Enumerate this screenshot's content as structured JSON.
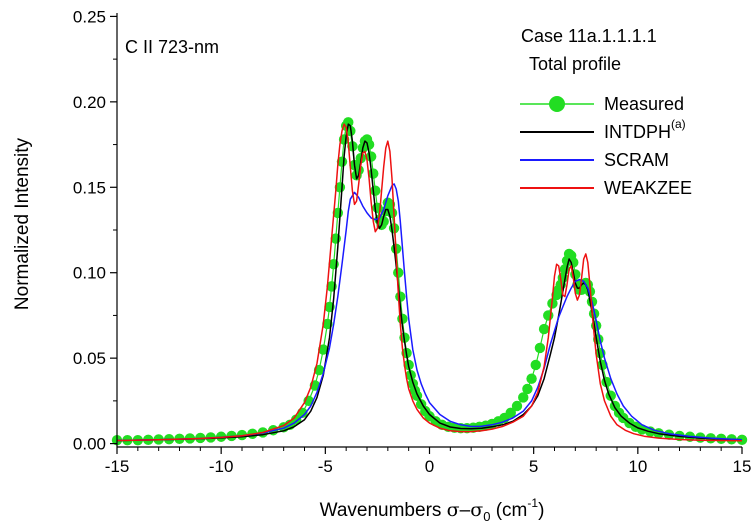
{
  "chart_data": {
    "type": "line",
    "title": "",
    "annotations": {
      "species": "C II 723-nm",
      "case_line1": "Case 11a.1.1.1.1",
      "case_line2": "Total profile"
    },
    "xlabel": {
      "prefix": "Wavenumbers ",
      "sigma": "σ",
      "minus": "–",
      "sigma0": "σ",
      "sigma0_sub": "0",
      "unit_open": " (cm",
      "unit_sup": "-1",
      "unit_close": ")"
    },
    "ylabel": "Normalized Intensity",
    "xlim": [
      -15,
      15
    ],
    "ylim": [
      -0.002,
      0.252
    ],
    "xticks": [
      -15,
      -10,
      -5,
      0,
      5,
      10,
      15
    ],
    "xtick_labels": [
      "-15",
      "-10",
      "-5",
      "0",
      "5",
      "10",
      "15"
    ],
    "yticks": [
      0.0,
      0.05,
      0.1,
      0.15,
      0.2,
      0.25
    ],
    "ytick_labels": [
      "0.00",
      "0.05",
      "0.10",
      "0.15",
      "0.20",
      "0.25"
    ],
    "grid": false,
    "legend_position": "top-right",
    "series": [
      {
        "name": "Measured",
        "style": "markers-line",
        "color": "#22dd22",
        "x": [
          -15,
          -14.5,
          -14,
          -13.5,
          -13,
          -12.5,
          -12,
          -11.5,
          -11,
          -10.5,
          -10,
          -9.5,
          -9,
          -8.5,
          -8,
          -7.5,
          -7,
          -6.7,
          -6.4,
          -6.1,
          -5.8,
          -5.5,
          -5.3,
          -5.1,
          -4.9,
          -4.8,
          -4.7,
          -4.6,
          -4.5,
          -4.4,
          -4.3,
          -4.2,
          -4.1,
          -4.0,
          -3.9,
          -3.8,
          -3.7,
          -3.6,
          -3.5,
          -3.4,
          -3.3,
          -3.2,
          -3.1,
          -3.0,
          -2.9,
          -2.8,
          -2.7,
          -2.6,
          -2.5,
          -2.4,
          -2.3,
          -2.2,
          -2.1,
          -2.0,
          -1.9,
          -1.8,
          -1.7,
          -1.6,
          -1.5,
          -1.4,
          -1.3,
          -1.2,
          -1.1,
          -1.0,
          -0.9,
          -0.8,
          -0.7,
          -0.6,
          -0.4,
          -0.2,
          0.0,
          0.3,
          0.6,
          0.9,
          1.2,
          1.5,
          1.8,
          2.1,
          2.4,
          2.7,
          3.0,
          3.3,
          3.6,
          3.9,
          4.2,
          4.5,
          4.7,
          4.9,
          5.1,
          5.3,
          5.5,
          5.7,
          5.9,
          6.1,
          6.2,
          6.3,
          6.4,
          6.5,
          6.6,
          6.7,
          6.8,
          6.9,
          7.0,
          7.1,
          7.2,
          7.3,
          7.4,
          7.5,
          7.6,
          7.7,
          7.8,
          7.9,
          8.0,
          8.1,
          8.2,
          8.3,
          8.5,
          8.7,
          8.9,
          9.1,
          9.3,
          9.6,
          9.9,
          10.2,
          10.6,
          11.0,
          11.5,
          12.0,
          12.5,
          13.0,
          13.5,
          14.0,
          14.5,
          15.0
        ],
        "y": [
          0.002,
          0.002,
          0.002,
          0.0022,
          0.0024,
          0.0026,
          0.0028,
          0.003,
          0.0033,
          0.0036,
          0.004,
          0.0045,
          0.005,
          0.0057,
          0.0065,
          0.0078,
          0.0095,
          0.011,
          0.014,
          0.018,
          0.025,
          0.034,
          0.043,
          0.055,
          0.07,
          0.08,
          0.092,
          0.105,
          0.12,
          0.135,
          0.15,
          0.165,
          0.178,
          0.186,
          0.188,
          0.183,
          0.174,
          0.163,
          0.157,
          0.16,
          0.167,
          0.173,
          0.177,
          0.178,
          0.175,
          0.168,
          0.158,
          0.148,
          0.138,
          0.131,
          0.128,
          0.13,
          0.136,
          0.141,
          0.14,
          0.135,
          0.126,
          0.114,
          0.1,
          0.086,
          0.073,
          0.062,
          0.053,
          0.046,
          0.04,
          0.035,
          0.031,
          0.028,
          0.023,
          0.019,
          0.016,
          0.013,
          0.011,
          0.0098,
          0.0093,
          0.009,
          0.009,
          0.0093,
          0.0098,
          0.0105,
          0.0115,
          0.013,
          0.015,
          0.018,
          0.022,
          0.027,
          0.032,
          0.038,
          0.046,
          0.056,
          0.067,
          0.075,
          0.082,
          0.087,
          0.09,
          0.093,
          0.097,
          0.102,
          0.107,
          0.111,
          0.11,
          0.106,
          0.099,
          0.093,
          0.09,
          0.09,
          0.092,
          0.094,
          0.093,
          0.089,
          0.083,
          0.076,
          0.069,
          0.061,
          0.053,
          0.046,
          0.036,
          0.028,
          0.022,
          0.018,
          0.015,
          0.012,
          0.0098,
          0.0083,
          0.007,
          0.006,
          0.0052,
          0.0045,
          0.004,
          0.0035,
          0.0031,
          0.0028,
          0.0025,
          0.0022
        ]
      },
      {
        "name": "INTDPH",
        "name_sup": "(a)",
        "style": "line",
        "color": "#000000",
        "x": [
          -15,
          -13,
          -11,
          -10,
          -9,
          -8,
          -7,
          -6.5,
          -6,
          -5.7,
          -5.4,
          -5.1,
          -4.8,
          -4.6,
          -4.4,
          -4.2,
          -4.1,
          -4.0,
          -3.9,
          -3.8,
          -3.7,
          -3.6,
          -3.5,
          -3.4,
          -3.3,
          -3.2,
          -3.1,
          -3.0,
          -2.9,
          -2.8,
          -2.7,
          -2.6,
          -2.5,
          -2.4,
          -2.3,
          -2.2,
          -2.1,
          -2.0,
          -1.9,
          -1.8,
          -1.7,
          -1.6,
          -1.5,
          -1.4,
          -1.3,
          -1.2,
          -1.1,
          -1.0,
          -0.8,
          -0.6,
          -0.3,
          0.0,
          0.5,
          1.0,
          1.5,
          2.0,
          2.5,
          3.0,
          3.5,
          4.0,
          4.5,
          4.9,
          5.2,
          5.5,
          5.8,
          6.0,
          6.2,
          6.3,
          6.4,
          6.5,
          6.6,
          6.7,
          6.8,
          6.9,
          7.0,
          7.1,
          7.2,
          7.3,
          7.4,
          7.5,
          7.6,
          7.7,
          7.8,
          7.9,
          8.0,
          8.2,
          8.4,
          8.6,
          8.9,
          9.2,
          9.6,
          10.0,
          10.5,
          11.0,
          12.0,
          13.0,
          14.0,
          15.0
        ],
        "y": [
          0.0018,
          0.0022,
          0.0028,
          0.0033,
          0.004,
          0.0052,
          0.0075,
          0.0098,
          0.014,
          0.019,
          0.027,
          0.04,
          0.062,
          0.085,
          0.115,
          0.15,
          0.168,
          0.18,
          0.187,
          0.186,
          0.177,
          0.163,
          0.155,
          0.157,
          0.165,
          0.173,
          0.177,
          0.176,
          0.17,
          0.16,
          0.148,
          0.137,
          0.129,
          0.126,
          0.128,
          0.133,
          0.137,
          0.137,
          0.133,
          0.125,
          0.115,
          0.104,
          0.092,
          0.08,
          0.069,
          0.06,
          0.052,
          0.045,
          0.036,
          0.029,
          0.022,
          0.017,
          0.012,
          0.0097,
          0.0088,
          0.0087,
          0.009,
          0.0098,
          0.011,
          0.013,
          0.017,
          0.022,
          0.028,
          0.038,
          0.052,
          0.062,
          0.075,
          0.082,
          0.089,
          0.096,
          0.103,
          0.108,
          0.106,
          0.1,
          0.094,
          0.091,
          0.091,
          0.093,
          0.094,
          0.093,
          0.09,
          0.084,
          0.077,
          0.07,
          0.062,
          0.048,
          0.037,
          0.029,
          0.021,
          0.016,
          0.012,
          0.0092,
          0.0072,
          0.0058,
          0.0042,
          0.0032,
          0.0026,
          0.0022
        ]
      },
      {
        "name": "SCRAM",
        "style": "line",
        "color": "#1a1aff",
        "x": [
          -15,
          -13,
          -11,
          -10,
          -9,
          -8,
          -7,
          -6.5,
          -6,
          -5.7,
          -5.4,
          -5.1,
          -4.8,
          -4.6,
          -4.4,
          -4.2,
          -4.0,
          -3.9,
          -3.8,
          -3.6,
          -3.4,
          -3.2,
          -3.0,
          -2.8,
          -2.6,
          -2.4,
          -2.2,
          -2.0,
          -1.8,
          -1.7,
          -1.6,
          -1.5,
          -1.4,
          -1.3,
          -1.2,
          -1.1,
          -1.0,
          -0.8,
          -0.6,
          -0.4,
          -0.2,
          0.0,
          0.5,
          1.0,
          1.5,
          2.0,
          2.5,
          3.0,
          3.5,
          4.0,
          4.5,
          4.9,
          5.2,
          5.5,
          5.8,
          6.0,
          6.2,
          6.4,
          6.6,
          6.8,
          7.0,
          7.2,
          7.4,
          7.6,
          7.8,
          8.0,
          8.2,
          8.4,
          8.7,
          9.0,
          9.3,
          9.7,
          10.2,
          10.8,
          11.5,
          12.5,
          13.5,
          14.5,
          15.0
        ],
        "y": [
          0.0018,
          0.0023,
          0.003,
          0.0037,
          0.0046,
          0.0062,
          0.009,
          0.012,
          0.017,
          0.022,
          0.03,
          0.041,
          0.056,
          0.07,
          0.086,
          0.105,
          0.125,
          0.136,
          0.143,
          0.147,
          0.144,
          0.139,
          0.135,
          0.132,
          0.131,
          0.132,
          0.137,
          0.145,
          0.151,
          0.152,
          0.149,
          0.142,
          0.13,
          0.115,
          0.1,
          0.086,
          0.073,
          0.055,
          0.043,
          0.035,
          0.029,
          0.024,
          0.017,
          0.013,
          0.011,
          0.01,
          0.0102,
          0.011,
          0.0125,
          0.015,
          0.019,
          0.025,
          0.033,
          0.044,
          0.058,
          0.066,
          0.074,
          0.08,
          0.086,
          0.091,
          0.095,
          0.096,
          0.095,
          0.091,
          0.083,
          0.072,
          0.06,
          0.05,
          0.038,
          0.029,
          0.022,
          0.016,
          0.011,
          0.0078,
          0.0058,
          0.0042,
          0.0032,
          0.0025,
          0.0022
        ]
      },
      {
        "name": "WEAKZEE",
        "style": "line",
        "color": "#ee1111",
        "x": [
          -15,
          -13,
          -11,
          -10,
          -9,
          -8,
          -7,
          -6.5,
          -6.0,
          -5.7,
          -5.4,
          -5.1,
          -4.9,
          -4.7,
          -4.5,
          -4.4,
          -4.3,
          -4.2,
          -4.1,
          -4.0,
          -3.9,
          -3.8,
          -3.7,
          -3.6,
          -3.5,
          -3.4,
          -3.3,
          -3.2,
          -3.1,
          -3.0,
          -2.9,
          -2.8,
          -2.7,
          -2.6,
          -2.5,
          -2.4,
          -2.3,
          -2.2,
          -2.1,
          -2.0,
          -1.9,
          -1.8,
          -1.7,
          -1.6,
          -1.5,
          -1.4,
          -1.3,
          -1.2,
          -1.1,
          -1.0,
          -0.8,
          -0.6,
          -0.3,
          0.0,
          0.5,
          1.0,
          1.5,
          2.0,
          2.5,
          3.0,
          3.5,
          4.0,
          4.5,
          4.9,
          5.2,
          5.5,
          5.7,
          5.9,
          6.0,
          6.1,
          6.2,
          6.3,
          6.4,
          6.5,
          6.6,
          6.7,
          6.8,
          6.9,
          7.0,
          7.1,
          7.2,
          7.3,
          7.4,
          7.5,
          7.6,
          7.7,
          7.8,
          7.9,
          8.0,
          8.2,
          8.4,
          8.7,
          9.0,
          9.4,
          9.8,
          10.3,
          11.0,
          12.0,
          13.0,
          14.0,
          15.0
        ],
        "y": [
          0.0018,
          0.0022,
          0.003,
          0.0036,
          0.0046,
          0.0065,
          0.0105,
          0.015,
          0.024,
          0.033,
          0.047,
          0.07,
          0.092,
          0.12,
          0.148,
          0.163,
          0.175,
          0.183,
          0.187,
          0.185,
          0.176,
          0.162,
          0.148,
          0.14,
          0.142,
          0.152,
          0.163,
          0.17,
          0.171,
          0.166,
          0.155,
          0.141,
          0.13,
          0.124,
          0.126,
          0.134,
          0.148,
          0.162,
          0.173,
          0.177,
          0.171,
          0.155,
          0.133,
          0.11,
          0.088,
          0.07,
          0.056,
          0.046,
          0.038,
          0.032,
          0.025,
          0.02,
          0.015,
          0.012,
          0.009,
          0.0075,
          0.007,
          0.007,
          0.0075,
          0.0085,
          0.01,
          0.0125,
          0.016,
          0.022,
          0.03,
          0.045,
          0.062,
          0.085,
          0.098,
          0.105,
          0.104,
          0.096,
          0.087,
          0.086,
          0.093,
          0.102,
          0.104,
          0.097,
          0.088,
          0.084,
          0.087,
          0.097,
          0.108,
          0.111,
          0.106,
          0.093,
          0.078,
          0.064,
          0.052,
          0.035,
          0.025,
          0.016,
          0.011,
          0.0078,
          0.0058,
          0.0043,
          0.0032,
          0.0024,
          0.002,
          0.0018,
          0.0017
        ]
      }
    ]
  }
}
